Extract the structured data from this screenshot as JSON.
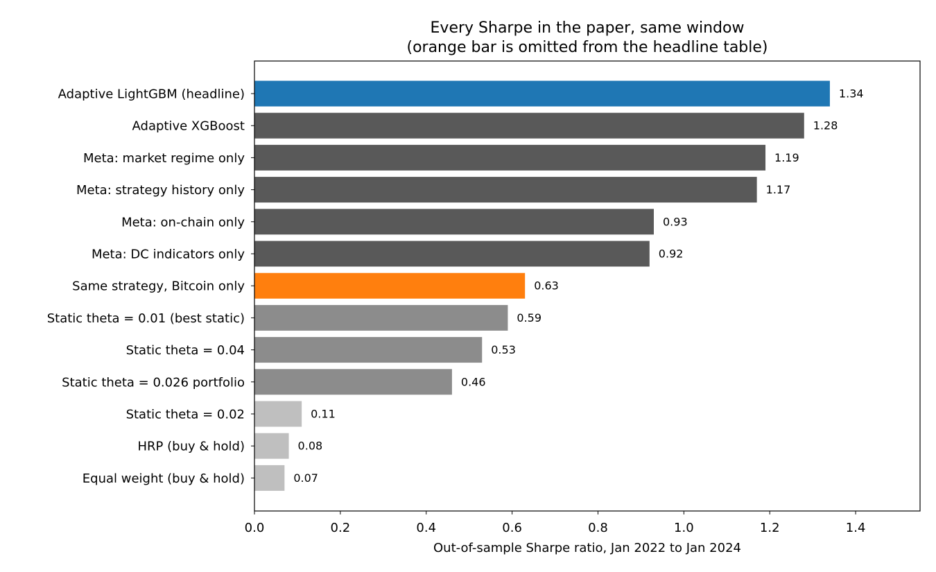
{
  "chart_data": {
    "type": "bar",
    "orientation": "horizontal",
    "title": "Every Sharpe in the paper, same window",
    "subtitle": "(orange bar is omitted from the headline table)",
    "xlabel": "Out-of-sample Sharpe ratio, Jan 2022 to Jan 2024",
    "ylabel": "",
    "xlim": [
      0,
      1.55
    ],
    "xticks": [
      "0.0",
      "0.2",
      "0.4",
      "0.6",
      "0.8",
      "1.0",
      "1.2",
      "1.4"
    ],
    "grid": false,
    "legend": "none",
    "categories": [
      "Adaptive LightGBM (headline)",
      "Adaptive XGBoost",
      "Meta: market regime only",
      "Meta: strategy history only",
      "Meta: on-chain only",
      "Meta: DC indicators only",
      "Same strategy, Bitcoin only",
      "Static theta = 0.01 (best static)",
      "Static theta = 0.04",
      "Static theta = 0.026 portfolio",
      "Static theta = 0.02",
      "HRP (buy & hold)",
      "Equal weight (buy & hold)"
    ],
    "values": [
      1.34,
      1.28,
      1.19,
      1.17,
      0.93,
      0.92,
      0.63,
      0.59,
      0.53,
      0.46,
      0.11,
      0.08,
      0.07
    ],
    "value_labels": [
      "1.34",
      "1.28",
      "1.19",
      "1.17",
      "0.93",
      "0.92",
      "0.63",
      "0.59",
      "0.53",
      "0.46",
      "0.11",
      "0.08",
      "0.07"
    ],
    "colors": [
      "#1f77b4",
      "#595959",
      "#595959",
      "#595959",
      "#595959",
      "#595959",
      "#ff7f0e",
      "#8c8c8c",
      "#8c8c8c",
      "#8c8c8c",
      "#bfbfbf",
      "#bfbfbf",
      "#bfbfbf"
    ]
  }
}
